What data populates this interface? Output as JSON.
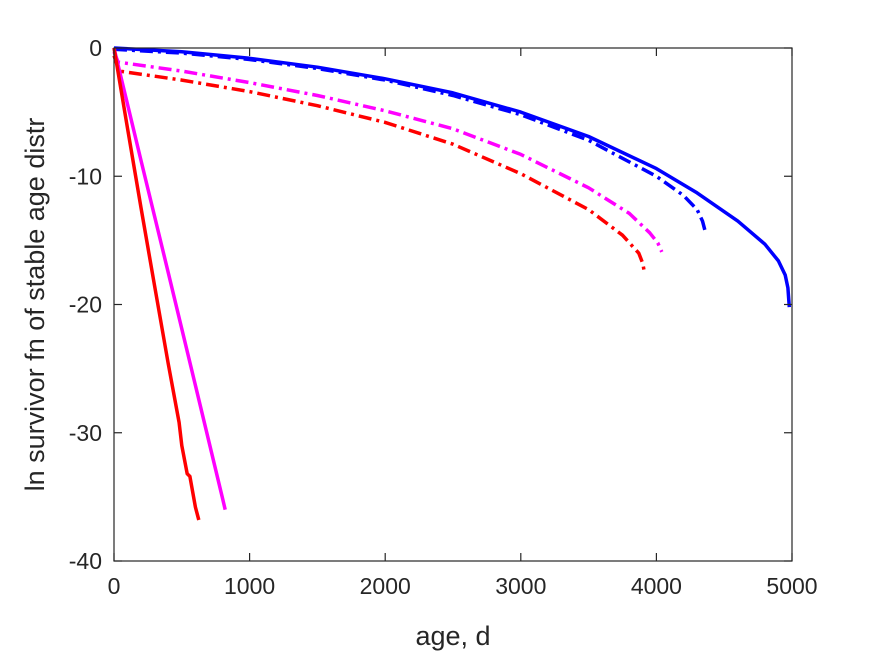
{
  "chart_data": {
    "type": "line",
    "title": "",
    "xlabel": "age, d",
    "ylabel": "ln survivor fn of stable age distr",
    "xlim": [
      0,
      5000
    ],
    "ylim": [
      -40,
      0
    ],
    "xticks": [
      0,
      1000,
      2000,
      3000,
      4000,
      5000
    ],
    "yticks": [
      0,
      -10,
      -20,
      -30,
      -40
    ],
    "xtick_labels": [
      "0",
      "1000",
      "2000",
      "3000",
      "4000",
      "5000"
    ],
    "ytick_labels": [
      "0",
      "-10",
      "-20",
      "-30",
      "-40"
    ],
    "grid": false,
    "legend": "none",
    "series": [
      {
        "color": "#0000FF",
        "style": "solid",
        "x": [
          0,
          500,
          1000,
          1500,
          2000,
          2500,
          3000,
          3500,
          4000,
          4300,
          4600,
          4800,
          4900,
          4950,
          4970,
          4980
        ],
        "y": [
          0,
          -0.3,
          -0.8,
          -1.5,
          -2.4,
          -3.5,
          -5.0,
          -6.9,
          -9.4,
          -11.3,
          -13.5,
          -15.3,
          -16.6,
          -17.7,
          -18.7,
          -20.2
        ]
      },
      {
        "color": "#0000FF",
        "style": "dashdot",
        "x": [
          0,
          500,
          1000,
          1500,
          2000,
          2500,
          3000,
          3500,
          4000,
          4200,
          4300,
          4340,
          4360
        ],
        "y": [
          -0.1,
          -0.4,
          -0.9,
          -1.6,
          -2.5,
          -3.7,
          -5.2,
          -7.2,
          -10.0,
          -11.5,
          -12.6,
          -13.5,
          -14.3
        ]
      },
      {
        "color": "#FF00FF",
        "style": "dashdot",
        "x": [
          0,
          30,
          500,
          1000,
          1500,
          2000,
          2500,
          3000,
          3500,
          3800,
          3950,
          4010,
          4040
        ],
        "y": [
          -0.3,
          -1.1,
          -1.8,
          -2.7,
          -3.7,
          -4.9,
          -6.3,
          -8.3,
          -10.9,
          -12.9,
          -14.4,
          -15.2,
          -15.9
        ]
      },
      {
        "color": "#FF0000",
        "style": "dashdot",
        "x": [
          0,
          40,
          500,
          1000,
          1500,
          2000,
          2500,
          3000,
          3500,
          3750,
          3870,
          3900,
          3910
        ],
        "y": [
          -0.6,
          -1.8,
          -2.5,
          -3.4,
          -4.5,
          -5.8,
          -7.5,
          -9.8,
          -12.6,
          -14.6,
          -16.0,
          -16.8,
          -17.4
        ]
      },
      {
        "color": "#FF00FF",
        "style": "solid",
        "x": [
          0,
          200,
          400,
          600,
          800,
          820
        ],
        "y": [
          0,
          -8.8,
          -17.5,
          -26.3,
          -35.1,
          -36.0
        ]
      },
      {
        "color": "#FF0000",
        "style": "solid",
        "x": [
          0,
          100,
          200,
          300,
          400,
          480,
          500,
          540,
          560,
          600,
          625
        ],
        "y": [
          0,
          -6.3,
          -12.5,
          -18.6,
          -24.6,
          -29.2,
          -31.0,
          -33.2,
          -33.4,
          -35.8,
          -36.8
        ]
      }
    ]
  }
}
